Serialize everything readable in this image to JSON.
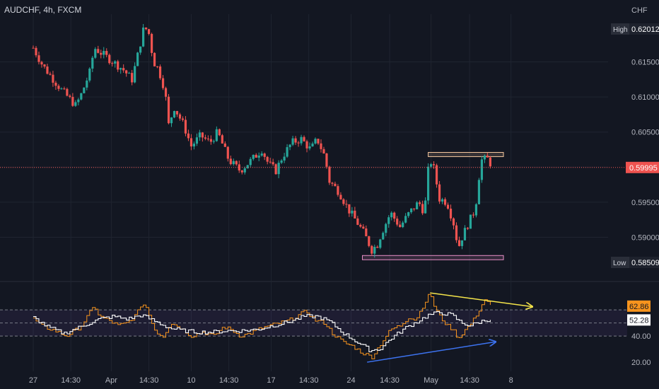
{
  "header": {
    "symbol_line": "AUDCHF, 4h, FXCM",
    "currency": "CHF"
  },
  "colors": {
    "bull": "#26a69a",
    "bear": "#ef5350",
    "background": "#131722",
    "grid": "#1f2430",
    "rsi": "#f7941d",
    "rsi_ma": "#ffffff",
    "resistance_stroke": "#f6c9a0",
    "support_stroke": "#e890c8",
    "yellow_line": "#f5e54a",
    "blue_line": "#3d73f0"
  },
  "chart_data": [
    {
      "type": "candlestick",
      "title": "AUDCHF, 4h, FXCM",
      "price_axis": {
        "range": [
          0.584,
          0.6208
        ],
        "ticks": [
          "0.61500",
          "0.61000",
          "0.60500",
          "0.60000",
          "0.59500",
          "0.59000"
        ],
        "tick_values": [
          0.615,
          0.61,
          0.605,
          0.6,
          0.595,
          0.59
        ]
      },
      "time_axis": {
        "labels": [
          "27",
          "14:30",
          "Apr",
          "14:30",
          "10",
          "14:30",
          "17",
          "14:30",
          "24",
          "14:30",
          "May",
          "14:30",
          "8"
        ],
        "positions": [
          0,
          0.4,
          0.83,
          1.23,
          1.68,
          2.08,
          2.53,
          2.93,
          3.38,
          3.79,
          4.23,
          4.64,
          5.08
        ]
      },
      "high": {
        "label": "High",
        "value": "0.62012"
      },
      "low": {
        "label": "Low",
        "value": "0.58509"
      },
      "last_price": {
        "value": "0.59995",
        "number": 0.59995
      },
      "resistance_zone": {
        "from": 0.6015,
        "to": 0.6021,
        "x_start": 4.2,
        "x_end": 5.0
      },
      "support_zone": {
        "from": 0.5868,
        "to": 0.5874,
        "x_start": 3.5,
        "x_end": 5.0
      },
      "waypoints": [
        [
          0,
          0.617
        ],
        [
          0.1,
          0.6145
        ],
        [
          0.3,
          0.611
        ],
        [
          0.45,
          0.6088
        ],
        [
          0.5,
          0.61
        ],
        [
          0.6,
          0.6135
        ],
        [
          0.65,
          0.617
        ],
        [
          0.75,
          0.616
        ],
        [
          0.85,
          0.615
        ],
        [
          0.95,
          0.614
        ],
        [
          1.05,
          0.6125
        ],
        [
          1.12,
          0.6165
        ],
        [
          1.17,
          0.6195
        ],
        [
          1.22,
          0.6198
        ],
        [
          1.28,
          0.615
        ],
        [
          1.33,
          0.614
        ],
        [
          1.4,
          0.611
        ],
        [
          1.44,
          0.606
        ],
        [
          1.5,
          0.6085
        ],
        [
          1.6,
          0.606
        ],
        [
          1.68,
          0.603
        ],
        [
          1.78,
          0.6045
        ],
        [
          1.88,
          0.6035
        ],
        [
          1.96,
          0.605
        ],
        [
          2.02,
          0.603
        ],
        [
          2.08,
          0.601
        ],
        [
          2.2,
          0.5995
        ],
        [
          2.32,
          0.601
        ],
        [
          2.43,
          0.6025
        ],
        [
          2.5,
          0.6005
        ],
        [
          2.58,
          0.5995
        ],
        [
          2.65,
          0.6015
        ],
        [
          2.75,
          0.6035
        ],
        [
          2.85,
          0.604
        ],
        [
          2.95,
          0.6025
        ],
        [
          3.02,
          0.604
        ],
        [
          3.1,
          0.6015
        ],
        [
          3.15,
          0.598
        ],
        [
          3.25,
          0.5965
        ],
        [
          3.35,
          0.594
        ],
        [
          3.45,
          0.592
        ],
        [
          3.52,
          0.5905
        ],
        [
          3.6,
          0.5882
        ],
        [
          3.66,
          0.589
        ],
        [
          3.7,
          0.5905
        ],
        [
          3.8,
          0.5935
        ],
        [
          3.9,
          0.5915
        ],
        [
          4.0,
          0.5935
        ],
        [
          4.1,
          0.595
        ],
        [
          4.16,
          0.5935
        ],
        [
          4.21,
          0.601
        ],
        [
          4.25,
          0.6005
        ],
        [
          4.32,
          0.5955
        ],
        [
          4.4,
          0.595
        ],
        [
          4.47,
          0.592
        ],
        [
          4.52,
          0.5885
        ],
        [
          4.56,
          0.59
        ],
        [
          4.62,
          0.5918
        ],
        [
          4.7,
          0.594
        ],
        [
          4.76,
          0.601
        ],
        [
          4.84,
          0.6012
        ],
        [
          4.88,
          0.5999
        ]
      ]
    },
    {
      "type": "line",
      "title": "RSI",
      "y_axis": {
        "range": [
          13,
          79
        ],
        "ticks": [
          "40.00",
          "20.00"
        ],
        "tick_values": [
          40,
          20
        ],
        "band": [
          40,
          60
        ]
      },
      "current_rsi": {
        "label": "62.86",
        "value": 62.86
      },
      "current_ma": {
        "label": "52.28",
        "value": 52.28
      },
      "series": [
        {
          "color": "#f7941d",
          "points": [
            [
              0,
              53
            ],
            [
              0.1,
              47
            ],
            [
              0.2,
              45
            ],
            [
              0.35,
              40
            ],
            [
              0.5,
              47
            ],
            [
              0.6,
              58
            ],
            [
              0.65,
              63
            ],
            [
              0.7,
              55
            ],
            [
              0.8,
              52
            ],
            [
              0.9,
              48
            ],
            [
              1.0,
              50
            ],
            [
              1.1,
              57
            ],
            [
              1.15,
              65
            ],
            [
              1.2,
              62
            ],
            [
              1.3,
              43
            ],
            [
              1.38,
              40
            ],
            [
              1.46,
              50
            ],
            [
              1.55,
              47
            ],
            [
              1.68,
              40
            ],
            [
              1.8,
              43
            ],
            [
              1.92,
              40
            ],
            [
              2.02,
              47
            ],
            [
              2.1,
              45
            ],
            [
              2.2,
              40
            ],
            [
              2.3,
              42
            ],
            [
              2.42,
              46
            ],
            [
              2.52,
              48
            ],
            [
              2.62,
              50
            ],
            [
              2.72,
              52
            ],
            [
              2.82,
              56
            ],
            [
              2.9,
              59
            ],
            [
              3.0,
              52
            ],
            [
              3.1,
              50
            ],
            [
              3.18,
              42
            ],
            [
              3.3,
              35
            ],
            [
              3.4,
              32
            ],
            [
              3.5,
              27
            ],
            [
              3.6,
              24
            ],
            [
              3.7,
              35
            ],
            [
              3.8,
              45
            ],
            [
              3.9,
              48
            ],
            [
              4.0,
              55
            ],
            [
              4.06,
              52
            ],
            [
              4.12,
              60
            ],
            [
              4.18,
              68
            ],
            [
              4.22,
              73
            ],
            [
              4.26,
              63
            ],
            [
              4.32,
              55
            ],
            [
              4.4,
              48
            ],
            [
              4.46,
              45
            ],
            [
              4.52,
              38
            ],
            [
              4.58,
              44
            ],
            [
              4.66,
              50
            ],
            [
              4.74,
              60
            ],
            [
              4.8,
              68
            ],
            [
              4.86,
              63
            ]
          ]
        },
        {
          "color": "#ffffff",
          "points": [
            [
              0,
              54
            ],
            [
              0.15,
              47
            ],
            [
              0.32,
              42
            ],
            [
              0.5,
              47
            ],
            [
              0.7,
              53
            ],
            [
              0.85,
              55
            ],
            [
              1.0,
              53
            ],
            [
              1.15,
              56
            ],
            [
              1.3,
              51
            ],
            [
              1.45,
              46
            ],
            [
              1.6,
              44
            ],
            [
              1.75,
              43
            ],
            [
              1.9,
              43
            ],
            [
              2.05,
              44
            ],
            [
              2.2,
              44
            ],
            [
              2.38,
              45
            ],
            [
              2.55,
              48
            ],
            [
              2.72,
              51
            ],
            [
              2.88,
              55
            ],
            [
              3.02,
              55
            ],
            [
              3.15,
              51
            ],
            [
              3.3,
              42
            ],
            [
              3.45,
              35
            ],
            [
              3.58,
              29
            ],
            [
              3.68,
              30
            ],
            [
              3.8,
              38
            ],
            [
              3.95,
              46
            ],
            [
              4.08,
              51
            ],
            [
              4.2,
              56
            ],
            [
              4.32,
              58
            ],
            [
              4.45,
              56
            ],
            [
              4.55,
              50
            ],
            [
              4.65,
              48
            ],
            [
              4.75,
              51
            ],
            [
              4.86,
              53
            ]
          ]
        }
      ]
    }
  ]
}
